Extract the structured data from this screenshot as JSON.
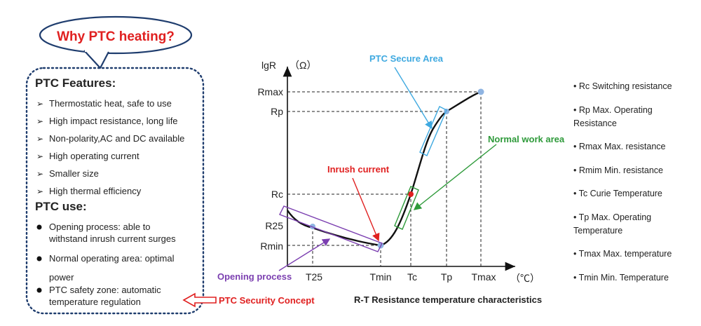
{
  "callout": {
    "title": "Why PTC heating?"
  },
  "features": {
    "heading": "PTC Features:",
    "items": [
      "Thermostatic heat, safe to use",
      "High impact resistance, long life",
      "Non-polarity,AC and DC available",
      "High operating current",
      "Smaller size",
      "High thermal efficiency"
    ]
  },
  "uses": {
    "heading": "PTC use:",
    "items": [
      [
        "Opening process: able to",
        "withstand inrush current surges"
      ],
      [
        "Normal operating area: optimal",
        "power"
      ],
      [
        "PTC safety zone: automatic",
        "temperature regulation"
      ]
    ]
  },
  "security_concept": "PTC Security Concept",
  "chart": {
    "y_axis_label": "lgR",
    "y_unit": "（Ω）",
    "x_unit": "（℃）",
    "caption": "R-T Resistance temperature characteristics",
    "y_ticks": [
      "Rmax",
      "Rp",
      "Rc",
      "R25",
      "Rmin"
    ],
    "x_ticks": [
      "T25",
      "Tmin",
      "Tc",
      "Tp",
      "Tmax"
    ],
    "annotations": {
      "secure_area": "PTC Secure Area",
      "normal_work": "Normal work area",
      "inrush": "Inrush current",
      "opening": "Opening process"
    },
    "colors": {
      "secure": "#3fa9e0",
      "normal": "#2e9a3a",
      "inrush": "#e02020",
      "opening": "#7b3fb0",
      "points": "#8fb4e2"
    }
  },
  "legend": [
    [
      "• Rc Switching resistance"
    ],
    [
      "• Rp Max. Operating",
      "Resistance"
    ],
    [
      "• Rmax Max. resistance"
    ],
    [
      "• Rmim Min. resistance"
    ],
    [
      "• Tc Curie Temperature"
    ],
    [
      "• Tp Max. Operating",
      "Temperature"
    ],
    [
      "• Tmax Max. temperature"
    ],
    [
      "• Tmin Min. Temperature"
    ]
  ]
}
